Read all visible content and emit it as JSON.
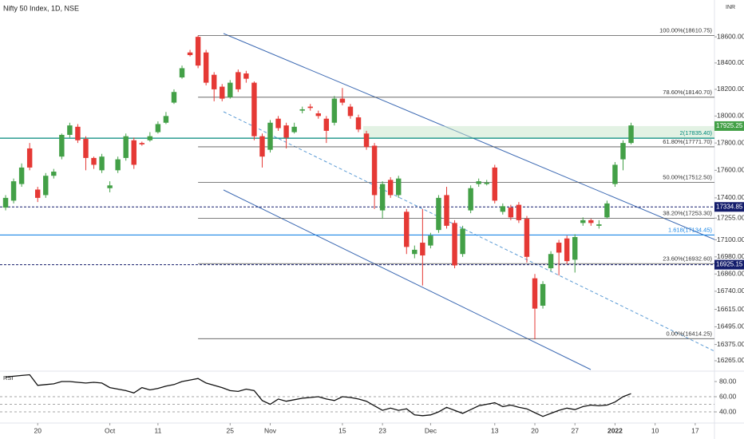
{
  "chart_data": {
    "type": "candlestick",
    "title": "Nifty 50 Index, 1D, NSE",
    "currency": "INR",
    "log": true,
    "ylim": [
      16195,
      18886
    ],
    "yticks": [
      {
        "value": 18600,
        "label": "18600.00"
      },
      {
        "value": 18400,
        "label": "18400.00"
      },
      {
        "value": 18200,
        "label": "18200.00"
      },
      {
        "value": 18000,
        "label": "18000.00"
      },
      {
        "value": 17800,
        "label": "17800.00"
      },
      {
        "value": 17600,
        "label": "17600.00"
      },
      {
        "value": 17400,
        "label": "17400.00"
      },
      {
        "value": 17255,
        "label": "17255.00"
      },
      {
        "value": 17100,
        "label": "17100.00"
      },
      {
        "value": 16980,
        "label": "16980.00"
      },
      {
        "value": 16860,
        "label": "16860.00"
      },
      {
        "value": 16740,
        "label": "16740.00"
      },
      {
        "value": 16615,
        "label": "16615.00"
      },
      {
        "value": 16495,
        "label": "16495.00"
      },
      {
        "value": 16375,
        "label": "16375.00"
      },
      {
        "value": 16265,
        "label": "16265.00"
      }
    ],
    "xlim": [
      -0.7,
      88.4
    ],
    "xticks": [
      {
        "value": 4,
        "label": "20"
      },
      {
        "value": 13,
        "label": "Oct"
      },
      {
        "value": 19,
        "label": "11"
      },
      {
        "value": 28,
        "label": "25"
      },
      {
        "value": 33,
        "label": "Nov"
      },
      {
        "value": 42,
        "label": "15"
      },
      {
        "value": 47,
        "label": "23"
      },
      {
        "value": 53,
        "label": "Dec"
      },
      {
        "value": 61,
        "label": "13"
      },
      {
        "value": 66,
        "label": "20"
      },
      {
        "value": 71,
        "label": "27"
      },
      {
        "value": 76,
        "label": "2022"
      },
      {
        "value": 81,
        "label": "10"
      },
      {
        "value": 86,
        "label": "17"
      }
    ],
    "up_color": "#43a047",
    "down_color": "#e53935",
    "series": {
      "open": [
        17330,
        17380,
        17500,
        17760,
        17460,
        17420,
        17560,
        17700,
        17860,
        17920,
        17830,
        17690,
        17600,
        17470,
        17600,
        17690,
        17820,
        17800,
        17820,
        17880,
        17950,
        18100,
        18290,
        18480,
        18600,
        18480,
        18310,
        18220,
        18140,
        18330,
        18320,
        18250,
        17850,
        17750,
        17980,
        17930,
        17880,
        18040,
        18070,
        18020,
        17980,
        17950,
        18130,
        18070,
        17990,
        17870,
        17780,
        17310,
        17530,
        17420,
        17300,
        17000,
        17080,
        17060,
        17170,
        17420,
        17220,
        17000,
        17310,
        17500,
        17500,
        17620,
        17300,
        17330,
        17350,
        17250,
        16830,
        16640,
        16900,
        17080,
        17110,
        16960,
        17220,
        17240,
        17200,
        17260,
        17500,
        17680,
        17800
      ],
      "high": [
        17420,
        17540,
        17650,
        17800,
        17480,
        17580,
        17610,
        17870,
        17950,
        17940,
        17850,
        17700,
        17720,
        17520,
        17700,
        17870,
        17840,
        17810,
        17880,
        17960,
        18030,
        18200,
        18380,
        18500,
        18610,
        18500,
        18330,
        18240,
        18270,
        18350,
        18340,
        18260,
        17870,
        17970,
        18000,
        17950,
        17950,
        18070,
        18090,
        18040,
        18000,
        18150,
        18210,
        18090,
        18010,
        17890,
        17800,
        17520,
        17550,
        17560,
        17320,
        17060,
        17320,
        17150,
        17420,
        17480,
        17240,
        17200,
        17490,
        17540,
        17530,
        17640,
        17360,
        17350,
        17370,
        17270,
        16860,
        16810,
        17020,
        17100,
        17130,
        17140,
        17260,
        17250,
        17240,
        17380,
        17660,
        17820,
        17950
      ],
      "low": [
        17310,
        17360,
        17480,
        17600,
        17370,
        17400,
        17540,
        17680,
        17840,
        17800,
        17600,
        17610,
        17580,
        17440,
        17580,
        17670,
        17610,
        17780,
        17810,
        17870,
        17940,
        18090,
        18280,
        18450,
        18360,
        18230,
        18110,
        18110,
        18130,
        18180,
        18250,
        17820,
        17620,
        17730,
        17890,
        17760,
        17870,
        18020,
        18040,
        17980,
        17800,
        17930,
        18080,
        17980,
        17880,
        17750,
        17320,
        17250,
        17400,
        17400,
        17000,
        16970,
        16780,
        17040,
        17150,
        17180,
        16900,
        16980,
        17290,
        17480,
        17490,
        17360,
        17280,
        17240,
        17220,
        16940,
        16410,
        16620,
        16880,
        16850,
        16930,
        16870,
        17200,
        17200,
        17180,
        17250,
        17480,
        17600,
        17790
      ],
      "close": [
        17400,
        17520,
        17620,
        17620,
        17400,
        17560,
        17590,
        17860,
        17930,
        17820,
        17690,
        17640,
        17700,
        17490,
        17680,
        17850,
        17640,
        17790,
        17850,
        17940,
        18000,
        18180,
        18360,
        18460,
        18380,
        18250,
        18200,
        18130,
        18250,
        18200,
        18280,
        17850,
        17700,
        17950,
        17910,
        17840,
        17920,
        18050,
        18060,
        18000,
        17890,
        18130,
        18100,
        18000,
        17900,
        17770,
        17420,
        17500,
        17420,
        17540,
        17050,
        17030,
        16990,
        17130,
        17400,
        17200,
        16920,
        17180,
        17470,
        17520,
        17510,
        17380,
        17340,
        17260,
        17240,
        16980,
        16620,
        16790,
        17000,
        17010,
        16950,
        17120,
        17240,
        17220,
        17210,
        17360,
        17640,
        17800,
        17930
      ]
    },
    "fib_levels": [
      {
        "value": 18610.75,
        "label": "100.00%(18610.75)"
      },
      {
        "value": 18140.7,
        "label": "78.60%(18140.70)"
      },
      {
        "value": 17771.7,
        "label": "61.80%(17771.70)"
      },
      {
        "value": 17512.5,
        "label": "50.00%(17512.50)"
      },
      {
        "value": 17253.3,
        "label": "38.20%(17253.30)"
      },
      {
        "value": 16932.6,
        "label": "23.60%(16932.60)"
      },
      {
        "value": 16414.25,
        "label": "0.00%(16414.25)"
      }
    ],
    "extension_levels": [
      {
        "value": 17835.4,
        "label": "2(17835.40)",
        "color": "#00897b"
      },
      {
        "value": 17134.45,
        "label": "1.618(17134.45)",
        "color": "#1e88e5"
      }
    ],
    "zone": [
      17835.4,
      17925.25
    ],
    "price_tags": [
      {
        "value": 17925.25,
        "color": "#43a047",
        "dashed": false
      },
      {
        "value": 17334.85,
        "color": "#131c6b",
        "dashed": true
      },
      {
        "value": 16925.15,
        "color": "#131c6b",
        "dashed": true
      }
    ],
    "rsi": {
      "label": "RSI",
      "ylim": [
        25.3,
        93.7
      ],
      "yticks": [
        {
          "value": 80,
          "label": "80.00"
        },
        {
          "value": 60,
          "label": "60.00"
        },
        {
          "value": 40,
          "label": "40.00"
        }
      ],
      "levels": [
        60,
        50,
        40
      ],
      "values": [
        86,
        87,
        88,
        89,
        75,
        76,
        77,
        80,
        80,
        79,
        78,
        79,
        78,
        72,
        70,
        68,
        65,
        72,
        69,
        71,
        74,
        76,
        80,
        82,
        84,
        78,
        75,
        72,
        68,
        67,
        70,
        68,
        55,
        50,
        57,
        54,
        56,
        58,
        59,
        60,
        57,
        55,
        60,
        59,
        57,
        54,
        48,
        42,
        45,
        42,
        44,
        36,
        35,
        36,
        40,
        46,
        42,
        38,
        43,
        48,
        50,
        52,
        47,
        49,
        46,
        44,
        39,
        34,
        38,
        42,
        45,
        43,
        47,
        49,
        48,
        49,
        53,
        60,
        64
      ]
    }
  }
}
